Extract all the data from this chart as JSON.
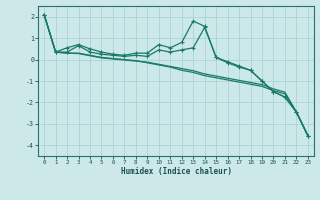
{
  "xlabel": "Humidex (Indice chaleur)",
  "ylabel": "",
  "background_color": "#cce8e8",
  "grid_color": "#aad4d4",
  "line_color": "#1a7a6a",
  "tick_color": "#1a5050",
  "xlim": [
    -0.5,
    23.5
  ],
  "ylim": [
    -4.5,
    2.5
  ],
  "yticks": [
    -4,
    -3,
    -2,
    -1,
    0,
    1,
    2
  ],
  "xticks": [
    0,
    1,
    2,
    3,
    4,
    5,
    6,
    7,
    8,
    9,
    10,
    11,
    12,
    13,
    14,
    15,
    16,
    17,
    18,
    19,
    20,
    21,
    22,
    23
  ],
  "series1_x": [
    0,
    1,
    2,
    3,
    4,
    5,
    6,
    7,
    8,
    9,
    10,
    11,
    12,
    13,
    14,
    15,
    16,
    17,
    18,
    19,
    20,
    21,
    22,
    23
  ],
  "series1_y": [
    2.1,
    0.35,
    0.55,
    0.7,
    0.5,
    0.35,
    0.25,
    0.2,
    0.3,
    0.3,
    0.7,
    0.55,
    0.8,
    1.8,
    1.55,
    0.1,
    -0.1,
    -0.3,
    -0.5,
    -1.0,
    -1.5,
    -1.75,
    -2.45,
    -3.55
  ],
  "series2_x": [
    0,
    1,
    2,
    3,
    4,
    5,
    6,
    7,
    8,
    9,
    10,
    11,
    12,
    13,
    14,
    15,
    16,
    17,
    18,
    19,
    20,
    21,
    22,
    23
  ],
  "series2_y": [
    2.1,
    0.35,
    0.35,
    0.65,
    0.35,
    0.25,
    0.2,
    0.15,
    0.2,
    0.15,
    0.45,
    0.35,
    0.45,
    0.55,
    1.5,
    0.1,
    -0.15,
    -0.35,
    -0.5,
    -1.0,
    -1.5,
    -1.75,
    -2.45,
    -3.55
  ],
  "series3_x": [
    0,
    1,
    2,
    3,
    4,
    5,
    6,
    7,
    8,
    9,
    10,
    11,
    12,
    13,
    14,
    15,
    16,
    17,
    18,
    19,
    20,
    21,
    22,
    23
  ],
  "series3_y": [
    2.1,
    0.35,
    0.3,
    0.3,
    0.2,
    0.1,
    0.05,
    0.0,
    -0.05,
    -0.15,
    -0.25,
    -0.35,
    -0.5,
    -0.6,
    -0.75,
    -0.85,
    -0.95,
    -1.05,
    -1.15,
    -1.25,
    -1.45,
    -1.6,
    -2.45,
    -3.55
  ],
  "series4_x": [
    0,
    1,
    2,
    3,
    4,
    5,
    6,
    7,
    8,
    9,
    10,
    11,
    12,
    13,
    14,
    15,
    16,
    17,
    18,
    19,
    20,
    21,
    22,
    23
  ],
  "series4_y": [
    2.1,
    0.35,
    0.3,
    0.28,
    0.18,
    0.08,
    0.03,
    -0.02,
    -0.07,
    -0.12,
    -0.22,
    -0.32,
    -0.42,
    -0.52,
    -0.67,
    -0.77,
    -0.87,
    -0.97,
    -1.07,
    -1.17,
    -1.37,
    -1.52,
    -2.45,
    -3.55
  ]
}
